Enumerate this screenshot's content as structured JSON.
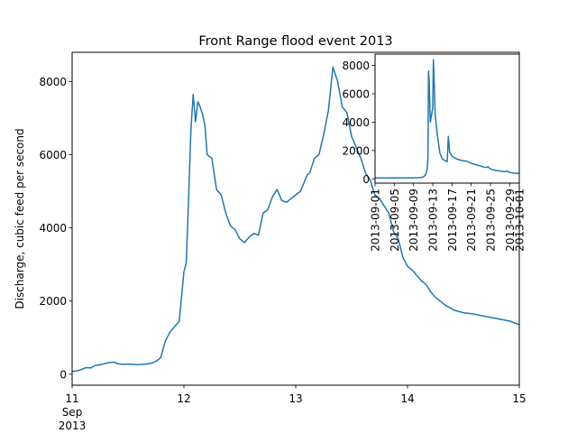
{
  "chart_data": [
    {
      "type": "line",
      "title": "Front Range flood event 2013",
      "xlabel": "",
      "ylabel": "Discharge, cubic feed per second",
      "xlim": [
        "2013-09-11",
        "2013-09-15"
      ],
      "ylim": [
        -300,
        8800
      ],
      "grid": false,
      "color": "#1f77b4",
      "x_ticks": [
        {
          "date": "2013-09-11",
          "label": "11",
          "sublabel": "Sep",
          "year_label": "2013"
        },
        {
          "date": "2013-09-12",
          "label": "12"
        },
        {
          "date": "2013-09-13",
          "label": "13"
        },
        {
          "date": "2013-09-14",
          "label": "14"
        },
        {
          "date": "2013-09-15",
          "label": "15"
        }
      ],
      "y_ticks": [
        0,
        2000,
        4000,
        6000,
        8000
      ],
      "series": [
        {
          "x": [
            "2013-09-11 00:00",
            "2013-09-11 01:00",
            "2013-09-11 02:00",
            "2013-09-11 03:00",
            "2013-09-11 04:00",
            "2013-09-11 05:00",
            "2013-09-11 06:00",
            "2013-09-11 07:00",
            "2013-09-11 08:00",
            "2013-09-11 09:00",
            "2013-09-11 10:00",
            "2013-09-11 11:00",
            "2013-09-11 12:00",
            "2013-09-11 13:00",
            "2013-09-11 14:00",
            "2013-09-11 15:00",
            "2013-09-11 16:00",
            "2013-09-11 17:00",
            "2013-09-11 18:00",
            "2013-09-11 19:00",
            "2013-09-11 20:00",
            "2013-09-11 21:00",
            "2013-09-11 22:00",
            "2013-09-11 23:00",
            "2013-09-12 00:00",
            "2013-09-12 00:30",
            "2013-09-12 01:00",
            "2013-09-12 01:30",
            "2013-09-12 02:00",
            "2013-09-12 02:30",
            "2013-09-12 03:00",
            "2013-09-12 03:30",
            "2013-09-12 04:00",
            "2013-09-12 04:30",
            "2013-09-12 05:00",
            "2013-09-12 06:00",
            "2013-09-12 07:00",
            "2013-09-12 08:00",
            "2013-09-12 09:00",
            "2013-09-12 10:00",
            "2013-09-12 11:00",
            "2013-09-12 12:00",
            "2013-09-12 13:00",
            "2013-09-12 14:00",
            "2013-09-12 15:00",
            "2013-09-12 16:00",
            "2013-09-12 17:00",
            "2013-09-12 18:00",
            "2013-09-12 19:00",
            "2013-09-12 20:00",
            "2013-09-12 21:00",
            "2013-09-12 22:00",
            "2013-09-12 23:00",
            "2013-09-13 00:00",
            "2013-09-13 01:00",
            "2013-09-13 02:00",
            "2013-09-13 02:30",
            "2013-09-13 03:00",
            "2013-09-13 03:30",
            "2013-09-13 04:00",
            "2013-09-13 05:00",
            "2013-09-13 06:00",
            "2013-09-13 07:00",
            "2013-09-13 08:00",
            "2013-09-13 09:00",
            "2013-09-13 10:00",
            "2013-09-13 11:00",
            "2013-09-13 12:00",
            "2013-09-13 13:00",
            "2013-09-13 14:00",
            "2013-09-13 15:00",
            "2013-09-13 16:00",
            "2013-09-13 17:00",
            "2013-09-13 18:00",
            "2013-09-13 19:00",
            "2013-09-13 20:00",
            "2013-09-13 21:00",
            "2013-09-13 22:00",
            "2013-09-13 23:00",
            "2013-09-14 00:00",
            "2013-09-14 01:00",
            "2013-09-14 02:00",
            "2013-09-14 03:00",
            "2013-09-14 04:00",
            "2013-09-14 05:00",
            "2013-09-14 06:00",
            "2013-09-14 08:00",
            "2013-09-14 10:00",
            "2013-09-14 12:00",
            "2013-09-14 14:00",
            "2013-09-14 16:00",
            "2013-09-14 18:00",
            "2013-09-14 20:00",
            "2013-09-14 22:00",
            "2013-09-15 00:00"
          ],
          "y": [
            80,
            90,
            130,
            180,
            170,
            240,
            260,
            290,
            320,
            330,
            280,
            270,
            280,
            270,
            260,
            270,
            280,
            300,
            350,
            450,
            900,
            1150,
            1300,
            1450,
            2800,
            3050,
            4800,
            6700,
            7650,
            6900,
            7450,
            7300,
            7100,
            6800,
            6000,
            5900,
            5050,
            4900,
            4400,
            4050,
            3950,
            3700,
            3600,
            3750,
            3850,
            3800,
            4400,
            4500,
            4850,
            5050,
            4750,
            4700,
            4800,
            4900,
            5000,
            5300,
            5450,
            5500,
            5700,
            5900,
            6000,
            6550,
            7200,
            8400,
            8000,
            7300,
            7150,
            6500,
            6200,
            5900,
            5500,
            5300,
            4900,
            4800,
            4600,
            4400,
            3900,
            3700,
            3200,
            2950,
            2850,
            2700,
            2550,
            2450,
            2250,
            2100,
            1900,
            1750,
            1680,
            1650,
            1600,
            1550,
            1500,
            1450,
            1350
          ]
        }
      ]
    },
    {
      "type": "line",
      "title": "",
      "xlabel": "",
      "ylabel": "",
      "xlim": [
        "2013-09-01",
        "2013-10-01"
      ],
      "ylim": [
        -300,
        8800
      ],
      "grid": false,
      "color": "#1f77b4",
      "x_ticks": [
        "2013-09-01",
        "2013-09-05",
        "2013-09-09",
        "2013-09-13",
        "2013-09-17",
        "2013-09-21",
        "2013-09-25",
        "2013-09-29",
        "2013-10-01"
      ],
      "y_ticks": [
        0,
        2000,
        4000,
        6000,
        8000
      ],
      "series": [
        {
          "x": [
            "2013-09-01",
            "2013-09-02",
            "2013-09-03",
            "2013-09-04",
            "2013-09-05",
            "2013-09-06",
            "2013-09-07",
            "2013-09-08",
            "2013-09-09",
            "2013-09-10",
            "2013-09-11",
            "2013-09-11 12:00",
            "2013-09-11 20:00",
            "2013-09-12 00:00",
            "2013-09-12 03:00",
            "2013-09-12 06:00",
            "2013-09-12 12:00",
            "2013-09-13 00:00",
            "2013-09-13 03:00",
            "2013-09-13 08:00",
            "2013-09-13 12:00",
            "2013-09-14 00:00",
            "2013-09-14 12:00",
            "2013-09-15 00:00",
            "2013-09-15 12:00",
            "2013-09-16 00:00",
            "2013-09-16 06:00",
            "2013-09-16 12:00",
            "2013-09-17 00:00",
            "2013-09-18 00:00",
            "2013-09-19 00:00",
            "2013-09-20 00:00",
            "2013-09-21 00:00",
            "2013-09-22 00:00",
            "2013-09-23 00:00",
            "2013-09-24 00:00",
            "2013-09-24 12:00",
            "2013-09-25 00:00",
            "2013-09-26 00:00",
            "2013-09-27 00:00",
            "2013-09-28 00:00",
            "2013-09-28 12:00",
            "2013-09-29 00:00",
            "2013-09-30 00:00",
            "2013-10-01 00:00"
          ],
          "y": [
            60,
            60,
            55,
            60,
            65,
            60,
            60,
            65,
            70,
            80,
            120,
            280,
            700,
            1500,
            7600,
            7000,
            4000,
            5000,
            8400,
            6500,
            4500,
            3000,
            1800,
            1400,
            1300,
            1200,
            3000,
            1900,
            1600,
            1400,
            1300,
            1250,
            1100,
            1000,
            900,
            800,
            850,
            700,
            600,
            550,
            500,
            550,
            450,
            400,
            380
          ]
        }
      ]
    }
  ]
}
